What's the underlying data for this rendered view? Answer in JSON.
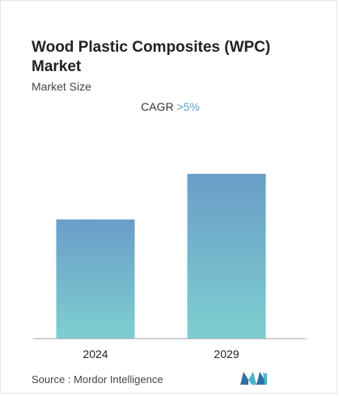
{
  "title": "Wood Plastic Composites (WPC) Market",
  "subtitle": "Market Size",
  "cagr": {
    "label": "CAGR",
    "value": ">5%"
  },
  "source": "Source :  Mordor Intelligence",
  "colors": {
    "bar_top": "#6a9ec8",
    "bar_bottom": "#7ecfd0",
    "cagr_value": "#5ba3c9"
  },
  "logo_icon": "mordor-intelligence-logo",
  "chart_data": {
    "type": "bar",
    "categories": [
      "2024",
      "2029"
    ],
    "values": [
      5.5,
      7.6
    ],
    "ylim": [
      0,
      8.5
    ],
    "grid": false,
    "legend": "none"
  }
}
